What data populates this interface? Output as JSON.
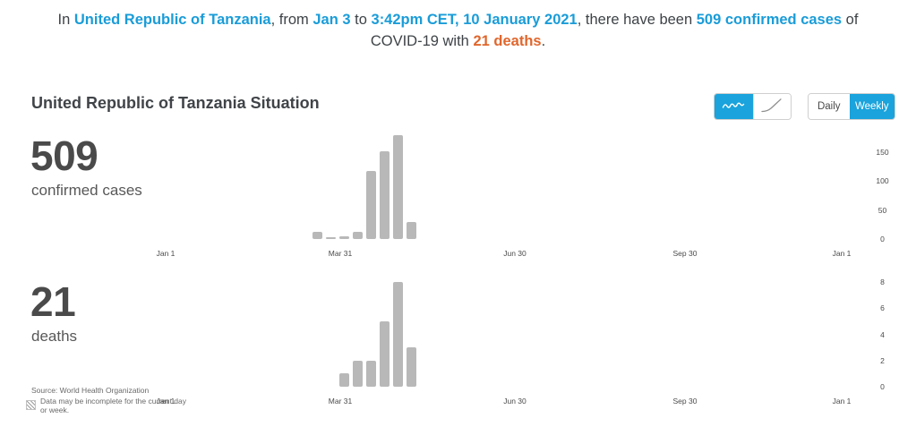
{
  "banner": {
    "segments": [
      {
        "text": "In ",
        "style": "n"
      },
      {
        "text": "United Republic of Tanzania",
        "style": "b"
      },
      {
        "text": ", from ",
        "style": "n"
      },
      {
        "text": "Jan 3",
        "style": "b"
      },
      {
        "text": " to ",
        "style": "n"
      },
      {
        "text": "3:42pm CET, 10 January 2021",
        "style": "b"
      },
      {
        "text": ", there have been ",
        "style": "n"
      },
      {
        "text": "509 confirmed cases",
        "style": "b"
      },
      {
        "text": " of",
        "style": "n",
        "break_after": true
      },
      {
        "text": "COVID-19 with ",
        "style": "n"
      },
      {
        "text": "21 deaths",
        "style": "o"
      },
      {
        "text": ".",
        "style": "n"
      }
    ]
  },
  "section": {
    "title": "United Republic of Tanzania Situation",
    "chart_type_toggle": {
      "options": [
        {
          "name": "weekly-bars",
          "icon": "squiggle-line-icon",
          "selected": true
        },
        {
          "name": "cumulative-curve",
          "icon": "cumulative-curve-icon",
          "selected": false
        }
      ]
    },
    "period_toggle": {
      "options": [
        {
          "label": "Daily",
          "selected": false
        },
        {
          "label": "Weekly",
          "selected": true
        }
      ]
    }
  },
  "chart_data": [
    {
      "type": "bar",
      "title": "confirmed cases",
      "stat_value": "509",
      "stat_label": "confirmed cases",
      "series_name": "weekly new confirmed cases",
      "categories_note": "weekly bins, first bar is the week ending ~Mar 22 2020",
      "values": [
        12,
        2,
        5,
        13,
        117,
        151,
        180,
        29
      ],
      "x_axis": {
        "tick_labels": [
          "Jan 1",
          "Mar 31",
          "Jun 30",
          "Sep 30",
          "Jan 1"
        ],
        "range": "Jan 1 2020 - Jan 10 2021"
      },
      "y_axis": {
        "tick_labels": [
          "150",
          "100",
          "50",
          "0"
        ],
        "ticks": [
          150,
          100,
          50,
          0
        ],
        "ylim": [
          0,
          196
        ]
      },
      "grid": false,
      "legend": false
    },
    {
      "type": "bar",
      "title": "deaths",
      "stat_value": "21",
      "stat_label": "deaths",
      "series_name": "weekly new deaths",
      "categories_note": "weekly bins, first bar is the week ending ~Apr 5 2020",
      "values": [
        1,
        2,
        2,
        5,
        8,
        3
      ],
      "x_axis": {
        "tick_labels": [
          "Jan 1",
          "Mar 31",
          "Jun 30",
          "Sep 30",
          "Jan 1"
        ],
        "range": "Jan 1 2020 - Jan 10 2021"
      },
      "y_axis": {
        "tick_labels": [
          "8",
          "6",
          "4",
          "2",
          "0"
        ],
        "ticks": [
          8,
          6,
          4,
          2,
          0
        ],
        "ylim": [
          0,
          9
        ]
      },
      "grid": false,
      "legend": false
    }
  ],
  "footer": {
    "source": "Source:  World Health Organization",
    "note_line1": "Data may be incomplete for the current day",
    "note_line2": "or week."
  },
  "colors": {
    "accent_blue": "#1AA3DC",
    "link_blue": "#1A9CD8",
    "deaths_orange": "#E0662C",
    "bar_gray": "#B8B8B8",
    "text_dark": "#3E4347",
    "text_gray": "#6A6A6A"
  }
}
